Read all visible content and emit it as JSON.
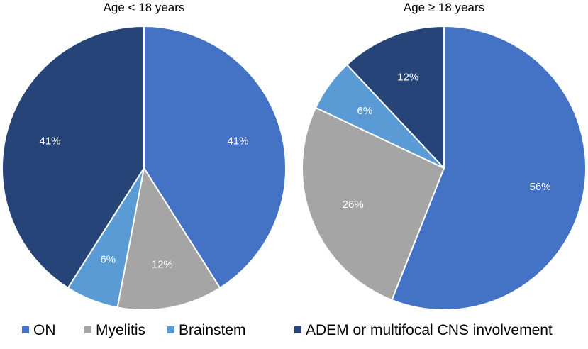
{
  "chart_data": [
    {
      "type": "pie",
      "title": "Age < 18 years",
      "categories": [
        "ON",
        "Myelitis",
        "Brainstem",
        "ADEM or multifocal CNS involvement"
      ],
      "values": [
        41,
        12,
        6,
        41
      ],
      "labels": [
        "41%",
        "12%",
        "6%",
        "41%"
      ]
    },
    {
      "type": "pie",
      "title": "Age ≥ 18 years",
      "categories": [
        "ON",
        "Myelitis",
        "Brainstem",
        "ADEM or multifocal CNS involvement"
      ],
      "values": [
        56,
        26,
        6,
        12
      ],
      "labels": [
        "56%",
        "26%",
        "6%",
        "12%"
      ]
    }
  ],
  "legend": {
    "placement": "bottom",
    "entries": [
      {
        "label": "ON",
        "color": "#4472C4"
      },
      {
        "label": "Myelitis",
        "color": "#A5A5A5"
      },
      {
        "label": "Brainstem",
        "color": "#5B9BD5"
      },
      {
        "label": "ADEM or multifocal CNS involvement",
        "color": "#264478"
      }
    ]
  }
}
